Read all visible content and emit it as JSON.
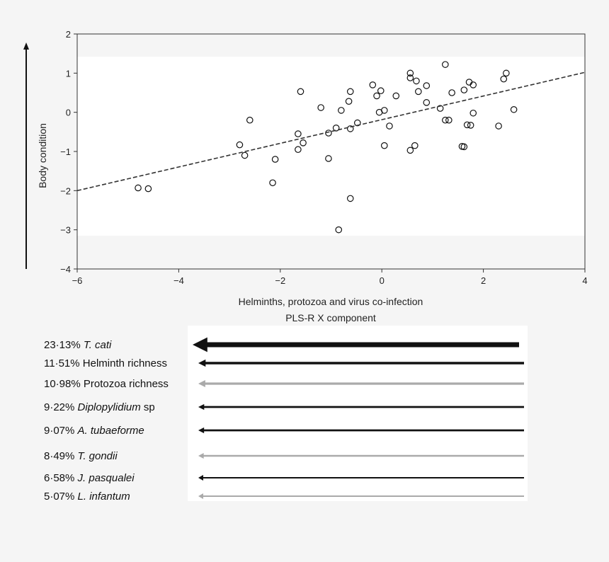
{
  "chart_data": {
    "type": "scatter",
    "xlabel_lines": [
      "Helminths, protozoa and virus co-infection",
      "PLS-R X component"
    ],
    "ylabel": "Body condition",
    "xlim": [
      -6,
      4
    ],
    "ylim": [
      -4,
      2
    ],
    "xticks": [
      -6,
      -4,
      -2,
      0,
      2,
      4
    ],
    "yticks": [
      2,
      1,
      0,
      -1,
      -2,
      -3,
      -4
    ],
    "xtick_labels": [
      "−6",
      "−4",
      "−2",
      "0",
      "2",
      "4"
    ],
    "ytick_labels": [
      "2",
      "1",
      "0",
      "−1",
      "−2",
      "−3",
      "−4"
    ],
    "grid": false,
    "band_y": [
      -3.15,
      1.42
    ],
    "trend_line": {
      "x": [
        -6,
        4
      ],
      "y": [
        -2.0,
        1.02
      ],
      "style": "dashed"
    },
    "points": [
      {
        "x": -4.8,
        "y": -1.93
      },
      {
        "x": -4.6,
        "y": -1.95
      },
      {
        "x": -2.8,
        "y": -0.83
      },
      {
        "x": -2.7,
        "y": -1.1
      },
      {
        "x": -2.6,
        "y": -0.2
      },
      {
        "x": -2.15,
        "y": -1.8
      },
      {
        "x": -2.1,
        "y": -1.2
      },
      {
        "x": -1.65,
        "y": -0.55
      },
      {
        "x": -1.65,
        "y": -0.95
      },
      {
        "x": -1.6,
        "y": 0.53
      },
      {
        "x": -1.55,
        "y": -0.78
      },
      {
        "x": -1.2,
        "y": 0.12
      },
      {
        "x": -1.05,
        "y": -0.53
      },
      {
        "x": -1.05,
        "y": -1.18
      },
      {
        "x": -0.9,
        "y": -0.4
      },
      {
        "x": -0.85,
        "y": -3.0
      },
      {
        "x": -0.8,
        "y": 0.05
      },
      {
        "x": -0.65,
        "y": 0.28
      },
      {
        "x": -0.62,
        "y": 0.53
      },
      {
        "x": -0.62,
        "y": -0.42
      },
      {
        "x": -0.62,
        "y": -2.2
      },
      {
        "x": -0.48,
        "y": -0.27
      },
      {
        "x": -0.18,
        "y": 0.7
      },
      {
        "x": -0.1,
        "y": 0.42
      },
      {
        "x": -0.05,
        "y": 0.0
      },
      {
        "x": -0.02,
        "y": 0.55
      },
      {
        "x": 0.05,
        "y": 0.05
      },
      {
        "x": 0.05,
        "y": -0.85
      },
      {
        "x": 0.15,
        "y": -0.35
      },
      {
        "x": 0.28,
        "y": 0.42
      },
      {
        "x": 0.56,
        "y": 1.0
      },
      {
        "x": 0.56,
        "y": 0.88
      },
      {
        "x": 0.56,
        "y": -0.97
      },
      {
        "x": 0.65,
        "y": -0.85
      },
      {
        "x": 0.68,
        "y": 0.8
      },
      {
        "x": 0.72,
        "y": 0.53
      },
      {
        "x": 0.88,
        "y": 0.25
      },
      {
        "x": 0.88,
        "y": 0.68
      },
      {
        "x": 1.15,
        "y": 0.1
      },
      {
        "x": 1.25,
        "y": 1.22
      },
      {
        "x": 1.25,
        "y": -0.2
      },
      {
        "x": 1.32,
        "y": -0.2
      },
      {
        "x": 1.38,
        "y": 0.5
      },
      {
        "x": 1.58,
        "y": -0.87
      },
      {
        "x": 1.62,
        "y": -0.88
      },
      {
        "x": 1.62,
        "y": 0.57
      },
      {
        "x": 1.68,
        "y": -0.32
      },
      {
        "x": 1.72,
        "y": 0.77
      },
      {
        "x": 1.75,
        "y": -0.33
      },
      {
        "x": 1.8,
        "y": -0.02
      },
      {
        "x": 1.8,
        "y": 0.7
      },
      {
        "x": 2.3,
        "y": -0.35
      },
      {
        "x": 2.4,
        "y": 0.85
      },
      {
        "x": 2.45,
        "y": 1.0
      },
      {
        "x": 2.6,
        "y": 0.07
      }
    ]
  },
  "loadings": [
    {
      "pct": "23·13%",
      "name": "T. cati",
      "italic": true,
      "color": "#111111",
      "weight": 23.13
    },
    {
      "pct": "11·51%",
      "name": "Helminth richness",
      "italic": false,
      "color": "#111111",
      "weight": 11.51
    },
    {
      "pct": "10·98%",
      "name": "Protozoa richness",
      "italic": false,
      "color": "#aaaaaa",
      "weight": 10.98
    },
    {
      "pct": "9·22%",
      "name": "Diplopylidium",
      "suffix": " sp",
      "italic": true,
      "color": "#111111",
      "weight": 9.22
    },
    {
      "pct": "9·07%",
      "name": "A. tubaeforme",
      "italic": true,
      "color": "#111111",
      "weight": 9.07
    },
    {
      "pct": "8·49%",
      "name": "T. gondii",
      "italic": true,
      "color": "#aaaaaa",
      "weight": 8.49
    },
    {
      "pct": "6·58%",
      "name": "J. pasqualei",
      "italic": true,
      "color": "#111111",
      "weight": 6.58
    },
    {
      "pct": "5·07%",
      "name": "L. infantum",
      "italic": true,
      "color": "#aaaaaa",
      "weight": 5.07
    }
  ],
  "colors": {
    "background": "#f5f5f5",
    "plot_bg": "#ffffff",
    "axis": "#333333"
  }
}
